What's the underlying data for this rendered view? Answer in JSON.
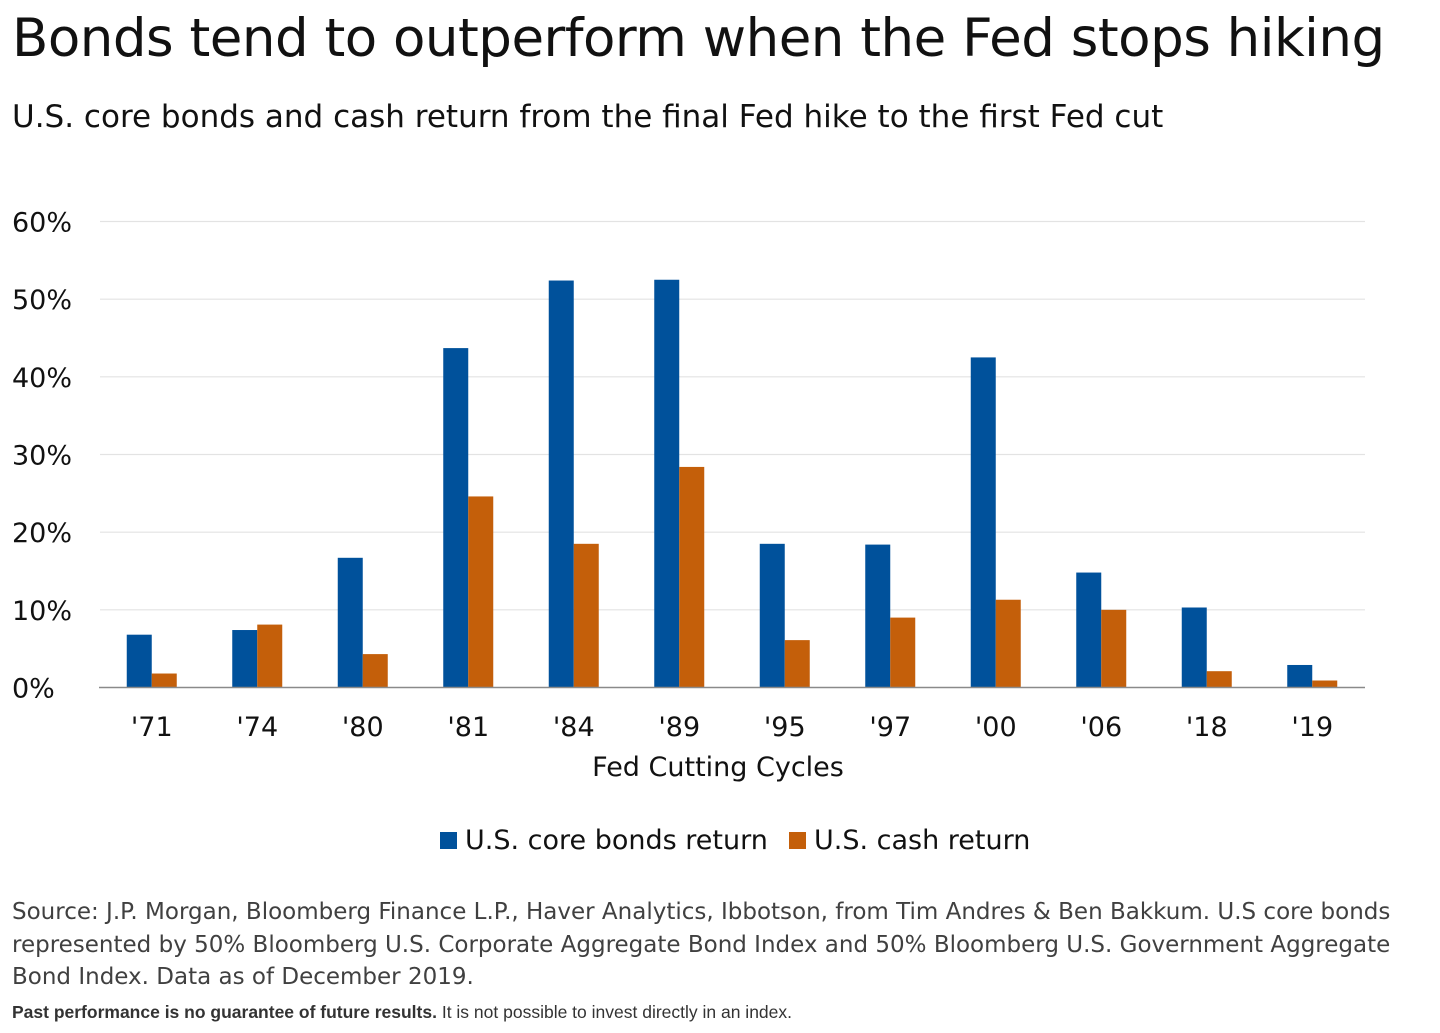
{
  "title": "Bonds tend to outperform when the Fed stops hiking",
  "subtitle": "U.S. core bonds and cash return from the final Fed hike to the first Fed cut",
  "chart_data": {
    "type": "bar",
    "categories": [
      "'71",
      "'74",
      "'80",
      "'81",
      "'84",
      "'89",
      "'95",
      "'97",
      "'00",
      "'06",
      "'18",
      "'19"
    ],
    "series": [
      {
        "name": "U.S. core bonds return",
        "color": "#00519b",
        "values": [
          6.8,
          7.4,
          16.7,
          43.7,
          52.4,
          52.5,
          18.5,
          18.4,
          42.5,
          14.8,
          10.3,
          2.9
        ]
      },
      {
        "name": "U.S. cash return",
        "color": "#c45f0a",
        "values": [
          1.8,
          8.1,
          4.3,
          24.6,
          18.5,
          28.4,
          6.1,
          9.0,
          11.3,
          10.0,
          2.1,
          0.9
        ]
      }
    ],
    "ylim": [
      0,
      60
    ],
    "yticks": [
      0,
      10,
      20,
      30,
      40,
      50,
      60
    ],
    "ytick_labels": [
      "0%",
      "10%",
      "20%",
      "30%",
      "40%",
      "50%",
      "60%"
    ],
    "xlabel": "Fed Cutting Cycles",
    "ylabel": "",
    "grid": true,
    "legend_position": "bottom-center"
  },
  "legend": {
    "bonds_label": "U.S. core bonds return",
    "cash_label": "U.S. cash return"
  },
  "colors": {
    "bonds": "#00519b",
    "cash": "#c45f0a",
    "gridline": "#e3e3e3",
    "axis": "#8a8a8a"
  },
  "source": "Source: J.P. Morgan, Bloomberg Finance L.P., Haver Analytics, Ibbotson, from Tim Andres & Ben Bakkum. U.S core bonds represented by 50% Bloomberg U.S. Corporate Aggregate Bond Index and 50% Bloomberg U.S. Government Aggregate Bond Index. Data as of December 2019.",
  "disclaimer": {
    "bold": "Past performance is no guarantee of future results.",
    "regular": " It is not possible to invest directly in an index."
  }
}
